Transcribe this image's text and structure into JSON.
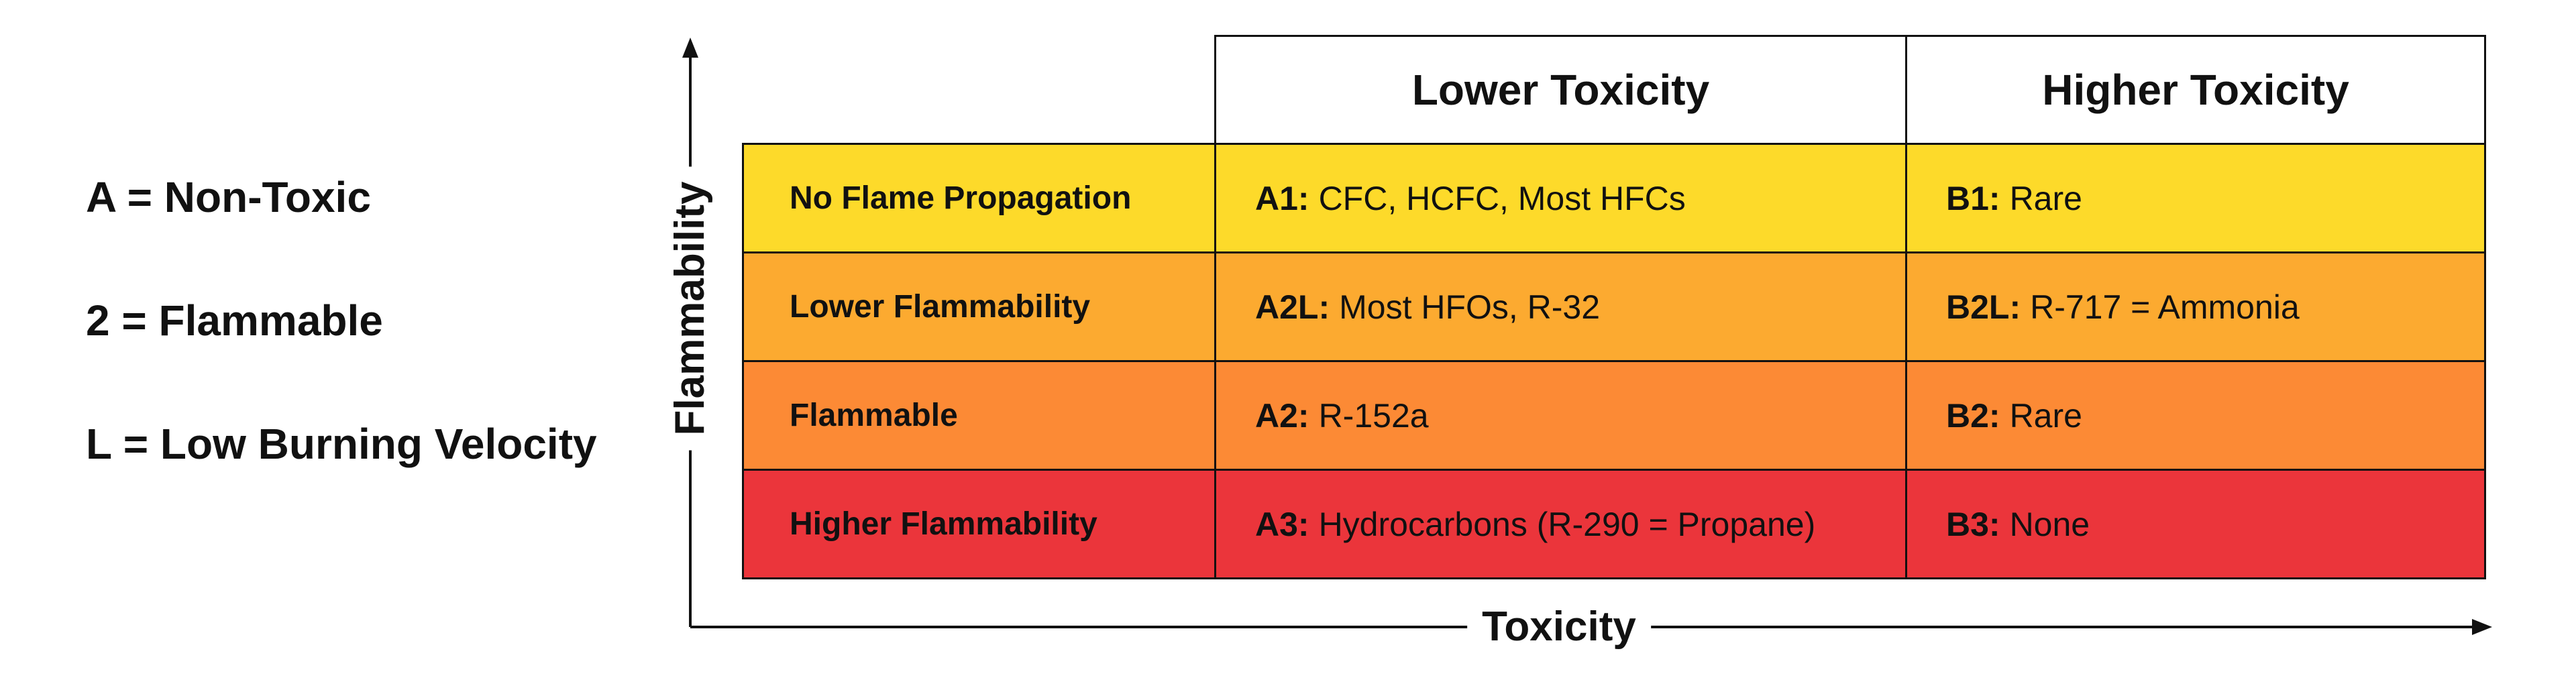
{
  "legend": [
    "A = Non-Toxic",
    "2 = Flammable",
    "L = Low Burning Velocity"
  ],
  "axes": {
    "y_label": "Flammability",
    "x_label": "Toxicity"
  },
  "columns": {
    "lower_toxicity": "Lower Toxicity",
    "higher_toxicity": "Higher Toxicity"
  },
  "rows": [
    {
      "label": "No Flame Propagation",
      "color": "#FDDA2A",
      "a_code": "A1:",
      "a_text": "CFC, HCFC, Most HFCs",
      "b_code": "B1:",
      "b_text": "Rare"
    },
    {
      "label": "Lower Flammability",
      "color": "#FCAA30",
      "a_code": "A2L:",
      "a_text": "Most HFOs, R-32",
      "b_code": "B2L:",
      "b_text": "R-717 = Ammonia"
    },
    {
      "label": "Flammable",
      "color": "#FC8A35",
      "a_code": "A2:",
      "a_text": "R-152a",
      "b_code": "B2:",
      "b_text": "Rare"
    },
    {
      "label": "Higher Flammability",
      "color": "#EB353B",
      "a_code": "A3:",
      "a_text": "Hydrocarbons (R-290 = Propane)",
      "b_code": "B3:",
      "b_text": "None"
    }
  ]
}
